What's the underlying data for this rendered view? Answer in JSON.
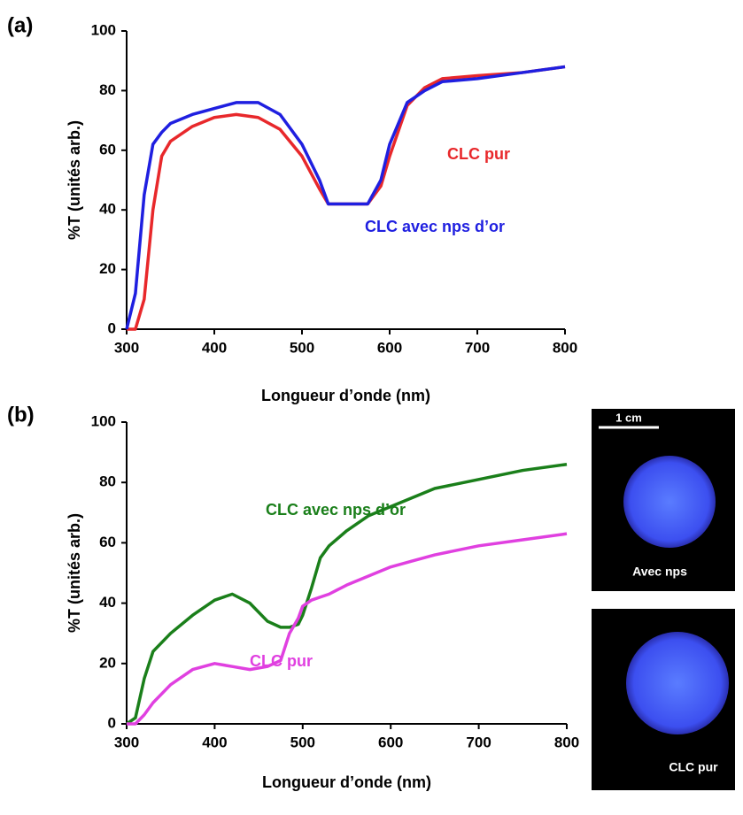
{
  "chart_data": [
    {
      "type": "line",
      "panel_label": "(a)",
      "xlabel": "Longueur d’onde (nm)",
      "ylabel": "%T (unités arb.)",
      "x": [
        300,
        310,
        320,
        330,
        340,
        350,
        375,
        400,
        425,
        450,
        475,
        500,
        520,
        530,
        550,
        575,
        590,
        600,
        620,
        640,
        660,
        700,
        750,
        800
      ],
      "series": [
        {
          "name": "CLC pur",
          "color": "#e8282b",
          "values": [
            0,
            0,
            10,
            40,
            58,
            63,
            68,
            71,
            72,
            71,
            67,
            58,
            47,
            42,
            42,
            42,
            48,
            58,
            75,
            81,
            84,
            85,
            86,
            88
          ]
        },
        {
          "name": "CLC avec nps d’or",
          "color": "#1f1fe0",
          "values": [
            0,
            12,
            45,
            62,
            66,
            69,
            72,
            74,
            76,
            76,
            72,
            62,
            50,
            42,
            42,
            42,
            50,
            62,
            76,
            80,
            83,
            84,
            86,
            88
          ]
        }
      ],
      "annotations": [
        {
          "text": "CLC pur",
          "color": "#e8282b"
        },
        {
          "text": "CLC avec nps d’or",
          "color": "#1f1fe0"
        }
      ],
      "xlim": [
        300,
        800
      ],
      "ylim": [
        0,
        100
      ],
      "xticks": [
        300,
        400,
        500,
        600,
        700,
        800
      ],
      "yticks": [
        0,
        20,
        40,
        60,
        80,
        100
      ]
    },
    {
      "type": "line",
      "panel_label": "(b)",
      "xlabel": "Longueur d’onde (nm)",
      "ylabel": "%T (unités arb.)",
      "x": [
        300,
        310,
        320,
        330,
        350,
        375,
        400,
        420,
        440,
        460,
        475,
        485,
        495,
        500,
        510,
        520,
        530,
        550,
        575,
        600,
        625,
        650,
        700,
        750,
        800
      ],
      "series": [
        {
          "name": "CLC avec nps d’or",
          "color": "#1a7f1a",
          "values": [
            0,
            2,
            15,
            24,
            30,
            36,
            41,
            43,
            40,
            34,
            32,
            32,
            33,
            36,
            45,
            55,
            59,
            64,
            69,
            72,
            75,
            78,
            81,
            84,
            86
          ]
        },
        {
          "name": "CLC pur",
          "color": "#e040e0",
          "values": [
            0,
            0,
            3,
            7,
            13,
            18,
            20,
            19,
            18,
            19,
            21,
            30,
            35,
            39,
            41,
            42,
            43,
            46,
            49,
            52,
            54,
            56,
            59,
            61,
            63
          ]
        }
      ],
      "annotations": [
        {
          "text": "CLC avec nps d’or",
          "color": "#1a7f1a"
        },
        {
          "text": "CLC pur",
          "color": "#e040e0"
        }
      ],
      "xlim": [
        300,
        800
      ],
      "ylim": [
        0,
        100
      ],
      "xticks": [
        300,
        400,
        500,
        600,
        700,
        800
      ],
      "yticks": [
        0,
        20,
        40,
        60,
        80,
        100
      ]
    }
  ],
  "photos": {
    "scale_bar": "1 cm",
    "captions": [
      "Avec nps",
      "CLC pur"
    ]
  }
}
